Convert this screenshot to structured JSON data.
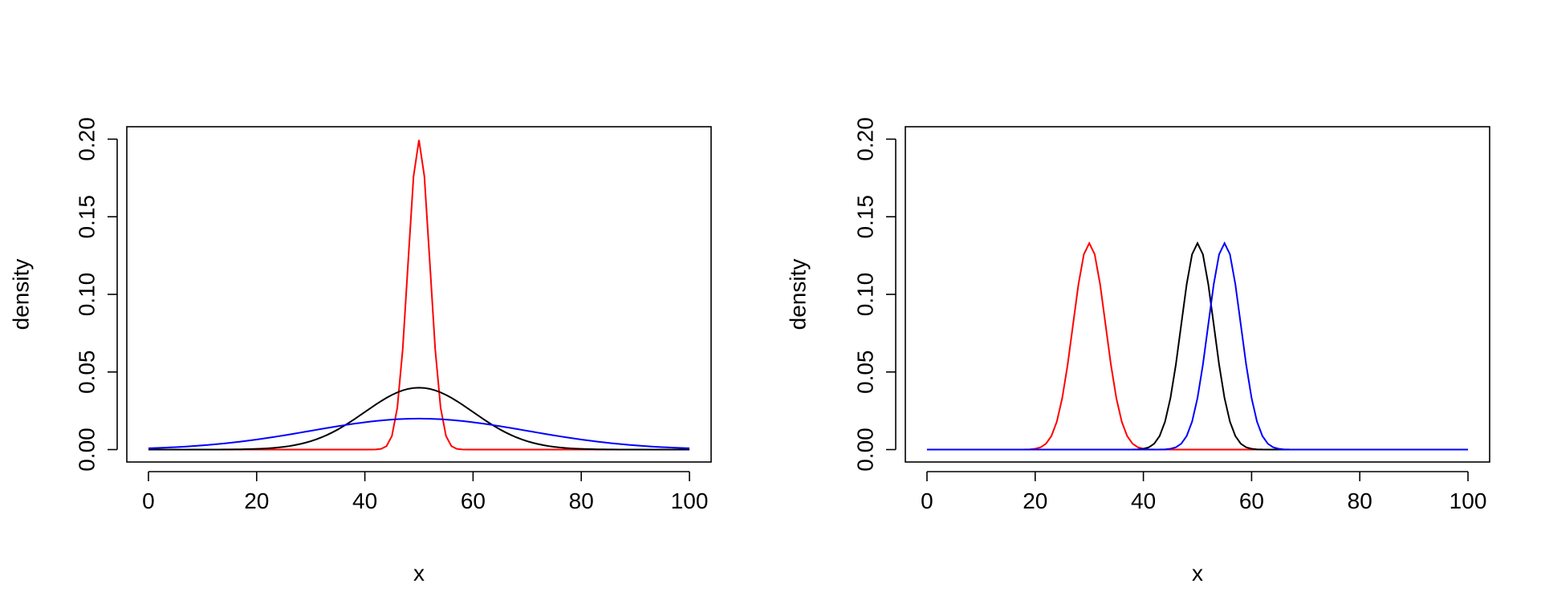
{
  "chart_data": [
    {
      "type": "line",
      "xlabel": "x",
      "ylabel": "density",
      "xlim": [
        0,
        100
      ],
      "ylim": [
        0,
        0.2
      ],
      "xticks": [
        0,
        20,
        40,
        60,
        80,
        100
      ],
      "yticks": [
        "0.00",
        "0.05",
        "0.10",
        "0.15",
        "0.20"
      ],
      "grid": false,
      "series": [
        {
          "color": "#ff0000",
          "distribution": "normal",
          "mean": 50,
          "sd": 2
        },
        {
          "color": "#000000",
          "distribution": "normal",
          "mean": 50,
          "sd": 10
        },
        {
          "color": "#0000ff",
          "distribution": "normal",
          "mean": 50,
          "sd": 20
        }
      ]
    },
    {
      "type": "line",
      "xlabel": "x",
      "ylabel": "density",
      "xlim": [
        0,
        100
      ],
      "ylim": [
        0,
        0.2
      ],
      "xticks": [
        0,
        20,
        40,
        60,
        80,
        100
      ],
      "yticks": [
        "0.00",
        "0.05",
        "0.10",
        "0.15",
        "0.20"
      ],
      "grid": false,
      "series": [
        {
          "color": "#ff0000",
          "distribution": "normal",
          "mean": 30,
          "sd": 3
        },
        {
          "color": "#000000",
          "distribution": "normal",
          "mean": 50,
          "sd": 3
        },
        {
          "color": "#0000ff",
          "distribution": "normal",
          "mean": 55,
          "sd": 3
        }
      ]
    }
  ]
}
